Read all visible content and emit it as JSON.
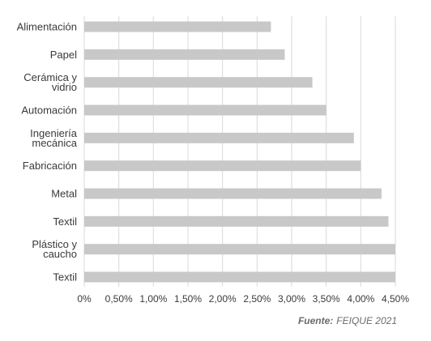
{
  "chart_data": {
    "type": "bar",
    "orientation": "horizontal",
    "categories": [
      [
        "Alimentación"
      ],
      [
        "Papel"
      ],
      [
        "Cerámica y",
        "vidrio"
      ],
      [
        "Automación"
      ],
      [
        "Ingeniería",
        "mecánica"
      ],
      [
        "Fabricación"
      ],
      [
        "Metal"
      ],
      [
        "Textil"
      ],
      [
        "Plástico y",
        "caucho"
      ],
      [
        "Textil"
      ]
    ],
    "values": [
      0.027,
      0.029,
      0.033,
      0.035,
      0.039,
      0.04,
      0.043,
      0.044,
      0.045,
      0.045
    ],
    "xlim": [
      0,
      0.045
    ],
    "xticks": [
      "0%",
      "0,50%",
      "1,00%",
      "1,50%",
      "2,00%",
      "2,50%",
      "3,00%",
      "3,50%",
      "4,00%",
      "4,50%"
    ],
    "bar_color": "#c8c8c8",
    "grid": true,
    "grid_color": "#d9d9d9",
    "title": "",
    "xlabel": "",
    "ylabel": "",
    "legend": "none"
  },
  "source": {
    "label": "Fuente:",
    "text": "FEIQUE 2021"
  }
}
